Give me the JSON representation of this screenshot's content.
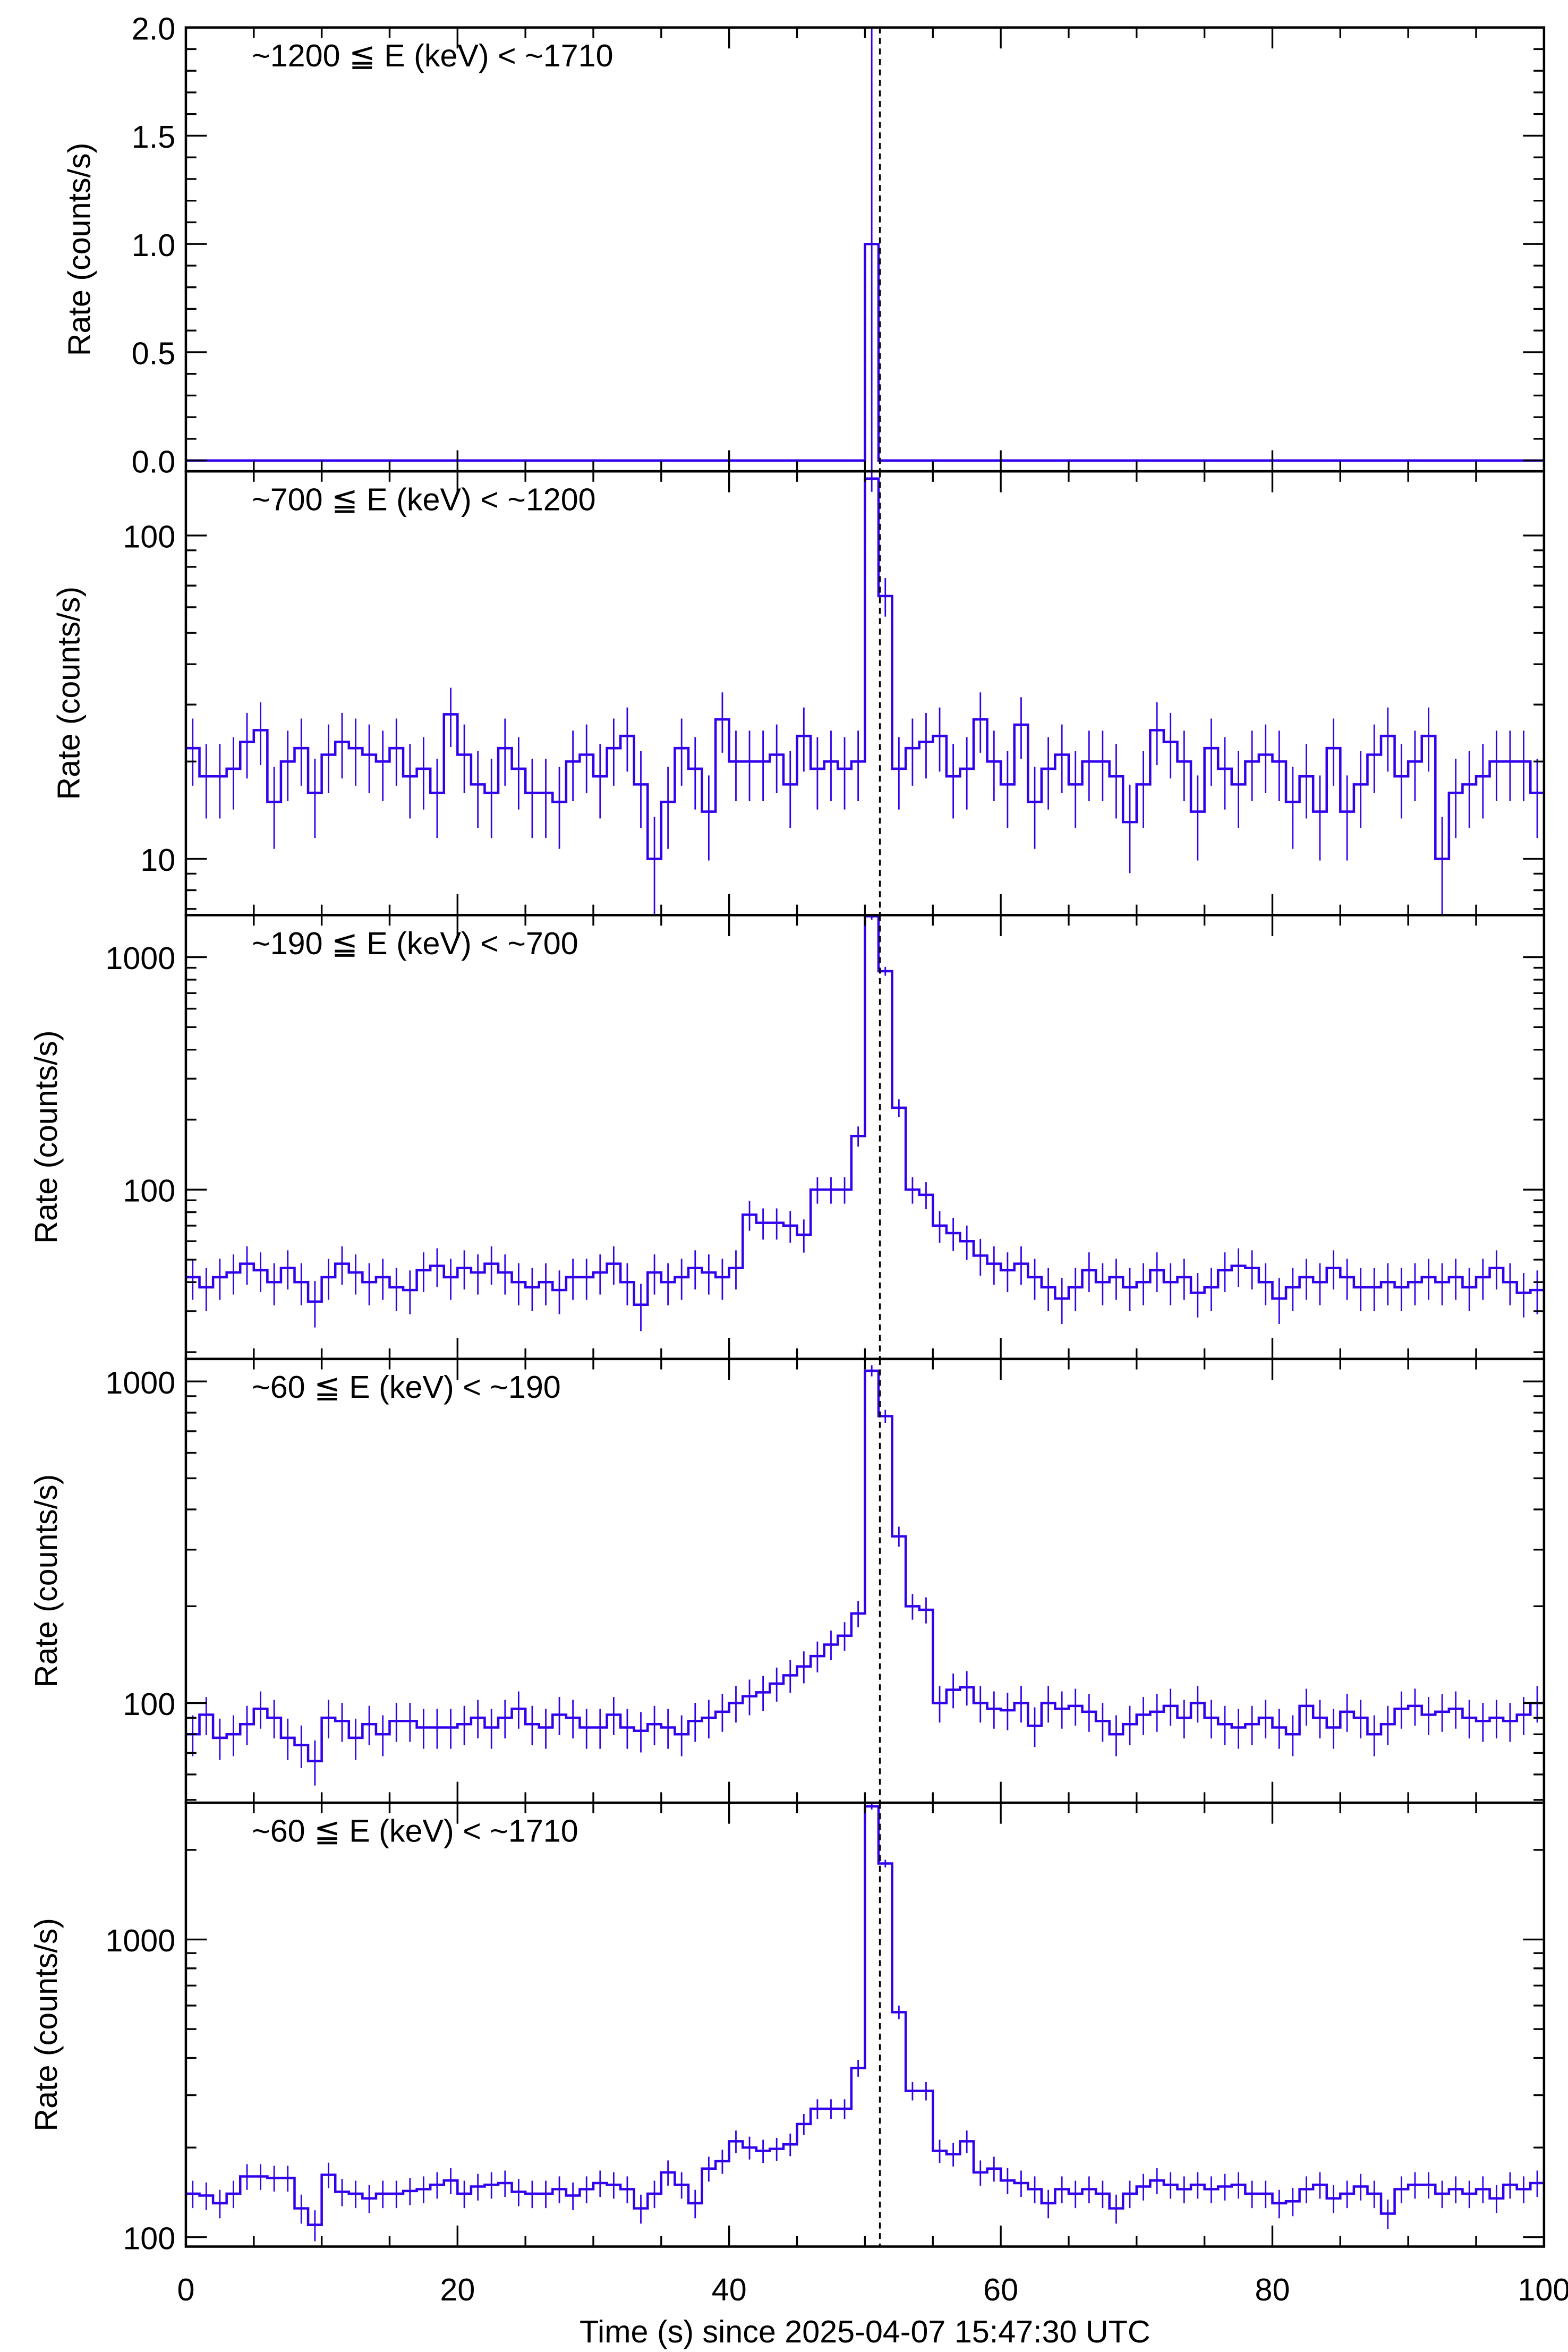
{
  "chart_data": {
    "type": "line",
    "subtype": "stacked light curves (step histogram with error bars)",
    "xlabel": "Time (s) since 2025-04-07 15:47:30 UTC",
    "xlim": [
      0,
      100
    ],
    "x_ticks": [
      0,
      20,
      40,
      60,
      80,
      100
    ],
    "x_tick_labels": [
      "0",
      "20",
      "40",
      "60",
      "80",
      "100"
    ],
    "bin_width_s": 1,
    "marker_time": 51.1,
    "series_color": "#3300ee",
    "panels": [
      {
        "label": "~1200 ≦ E (keV) < ~1710",
        "ylabel": "Rate (counts/s)",
        "scale": "linear",
        "ylim": [
          -0.05,
          2.0
        ],
        "y_ticks": [
          0,
          0.5,
          1.0,
          1.5,
          2.0
        ],
        "y_tick_labels": [
          "0.0",
          "0.5",
          "1.0",
          "1.5",
          "2.0"
        ],
        "err_scale": 1.2,
        "values": [
          0,
          0,
          0,
          0,
          0,
          0,
          0,
          0,
          0,
          0,
          0,
          0,
          0,
          0,
          0,
          0,
          0,
          0,
          0,
          0,
          0,
          0,
          0,
          0,
          0,
          0,
          0,
          0,
          0,
          0,
          0,
          0,
          0,
          0,
          0,
          0,
          0,
          0,
          0,
          0,
          0,
          0,
          0,
          0,
          0,
          0,
          0,
          0,
          0,
          0,
          1.0,
          0,
          0,
          0,
          0,
          0,
          0,
          0,
          0,
          0,
          0,
          0,
          0,
          0,
          0,
          0,
          0,
          0,
          0,
          0,
          0,
          0,
          0,
          0,
          0,
          0,
          0,
          0,
          0,
          0,
          0,
          0,
          0,
          0,
          0,
          0,
          0,
          0,
          0,
          0,
          0,
          0,
          0,
          0,
          0,
          0,
          0,
          0,
          0,
          0
        ]
      },
      {
        "label": "~700 ≦ E (keV) < ~1200",
        "ylabel": "Rate (counts/s)",
        "scale": "log",
        "ylim": [
          6.7,
          158
        ],
        "y_ticks": [
          10,
          100
        ],
        "y_tick_labels": [
          "10",
          "100"
        ],
        "err_scale": 1.1,
        "values": [
          22,
          18,
          18,
          19,
          23,
          25,
          15,
          20,
          22,
          16,
          21,
          23,
          22,
          21,
          20,
          22,
          18,
          19,
          16,
          28,
          21,
          17,
          16,
          22,
          19,
          16,
          16,
          15,
          20,
          21,
          18,
          22,
          24,
          17,
          10,
          15,
          22,
          19,
          14,
          27,
          20,
          20,
          20,
          21,
          17,
          24,
          19,
          20,
          19,
          20,
          150,
          65,
          19,
          22,
          23,
          24,
          18,
          19,
          27,
          20,
          17,
          26,
          15,
          19,
          21,
          17,
          20,
          20,
          18,
          13,
          17,
          25,
          23,
          20,
          14,
          22,
          19,
          17,
          20,
          21,
          20,
          15,
          18,
          14,
          22,
          14,
          17,
          21,
          24,
          18,
          20,
          24,
          10,
          16,
          17,
          18,
          20,
          20,
          20,
          16
        ]
      },
      {
        "label": "~190 ≦ E (keV) < ~700",
        "ylabel": "Rate (counts/s)",
        "scale": "log",
        "ylim": [
          18.7,
          1516
        ],
        "y_ticks": [
          100,
          1000
        ],
        "y_tick_labels": [
          "100",
          "1000"
        ],
        "err_scale": 1.3,
        "values": [
          42,
          38,
          42,
          44,
          48,
          45,
          40,
          46,
          40,
          33,
          42,
          48,
          44,
          40,
          42,
          38,
          37,
          45,
          47,
          42,
          46,
          44,
          48,
          44,
          40,
          38,
          40,
          37,
          42,
          42,
          44,
          48,
          40,
          32,
          44,
          40,
          42,
          46,
          44,
          42,
          46,
          78,
          72,
          72,
          70,
          64,
          100,
          100,
          100,
          170,
          1500,
          870,
          225,
          100,
          95,
          70,
          65,
          60,
          52,
          48,
          45,
          48,
          42,
          38,
          34,
          38,
          45,
          40,
          42,
          38,
          40,
          45,
          40,
          42,
          36,
          38,
          45,
          47,
          46,
          40,
          34,
          38,
          42,
          40,
          46,
          42,
          38,
          38,
          40,
          38,
          40,
          42,
          40,
          42,
          38,
          42,
          46,
          40,
          36,
          37
        ]
      },
      {
        "label": "~60 ≦ E (keV) < ~190",
        "ylabel": "Rate (counts/s)",
        "scale": "log",
        "ylim": [
          49,
          1175
        ],
        "y_ticks": [
          100,
          1000
        ],
        "y_tick_labels": [
          "100",
          "1000"
        ],
        "err_scale": 1.3,
        "values": [
          80,
          92,
          78,
          80,
          86,
          96,
          90,
          78,
          74,
          66,
          90,
          88,
          78,
          86,
          80,
          88,
          88,
          84,
          84,
          84,
          86,
          90,
          84,
          90,
          96,
          86,
          84,
          92,
          90,
          84,
          84,
          92,
          84,
          82,
          86,
          84,
          80,
          88,
          90,
          94,
          100,
          105,
          108,
          115,
          122,
          130,
          140,
          152,
          162,
          190,
          1080,
          780,
          330,
          200,
          195,
          100,
          110,
          112,
          100,
          96,
          95,
          100,
          85,
          100,
          96,
          98,
          94,
          88,
          80,
          86,
          92,
          94,
          98,
          90,
          100,
          90,
          86,
          84,
          86,
          90,
          84,
          80,
          98,
          90,
          84,
          94,
          90,
          80,
          86,
          96,
          98,
          92,
          94,
          96,
          90,
          88,
          90,
          88,
          92,
          100
        ]
      },
      {
        "label": "~60 ≦ E (keV) < ~1710",
        "ylabel": "Rate (counts/s)",
        "scale": "log",
        "ylim": [
          93,
          2880
        ],
        "y_ticks": [
          100,
          1000
        ],
        "y_tick_labels": [
          "100",
          "1000"
        ],
        "err_scale": 1.25,
        "values": [
          140,
          138,
          130,
          140,
          160,
          160,
          158,
          158,
          125,
          110,
          162,
          142,
          140,
          135,
          140,
          140,
          143,
          145,
          150,
          155,
          140,
          148,
          150,
          152,
          142,
          140,
          140,
          145,
          138,
          145,
          152,
          150,
          145,
          125,
          140,
          165,
          150,
          130,
          170,
          180,
          210,
          200,
          195,
          198,
          205,
          240,
          270,
          270,
          270,
          370,
          2800,
          1800,
          570,
          310,
          310,
          195,
          190,
          210,
          165,
          170,
          155,
          152,
          145,
          130,
          145,
          140,
          145,
          140,
          125,
          140,
          148,
          155,
          150,
          145,
          150,
          145,
          148,
          150,
          140,
          140,
          130,
          132,
          145,
          150,
          135,
          140,
          148,
          140,
          120,
          145,
          150,
          150,
          140,
          145,
          140,
          145,
          135,
          150,
          145,
          152
        ]
      }
    ]
  }
}
